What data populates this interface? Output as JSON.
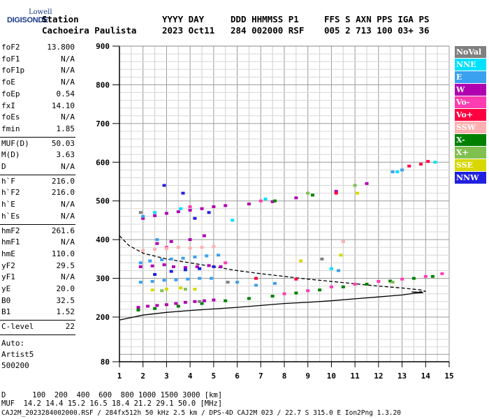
{
  "logo": {
    "line1": "Lowell",
    "line2": "DIGISONDE"
  },
  "header": {
    "row1": [
      "Station",
      "YYYY DAY",
      "DDD HHMMSS P1",
      "FFS S AXN PPS IGA PS"
    ],
    "row2": [
      "Cachoeira Paulista",
      "2023 Oct11",
      "284 002000 RSF",
      "005 2 713 100 03+ 36"
    ]
  },
  "params": {
    "group1": [
      {
        "k": "foF2",
        "v": "13.800"
      },
      {
        "k": "foF1",
        "v": "N/A"
      },
      {
        "k": "foF1p",
        "v": "N/A"
      },
      {
        "k": "foE",
        "v": "N/A"
      },
      {
        "k": "foEp",
        "v": "0.54"
      },
      {
        "k": "fxI",
        "v": "14.10"
      },
      {
        "k": "foEs",
        "v": "N/A"
      },
      {
        "k": "fmin",
        "v": "1.85"
      }
    ],
    "group2": [
      {
        "k": "MUF(D)",
        "v": "50.03"
      },
      {
        "k": "M(D)",
        "v": "3.63"
      },
      {
        "k": "D",
        "v": "N/A"
      }
    ],
    "group3": [
      {
        "k": "h`F",
        "v": "216.0"
      },
      {
        "k": "h`F2",
        "v": "216.0"
      },
      {
        "k": "h`E",
        "v": "N/A"
      },
      {
        "k": "h`Es",
        "v": "N/A"
      }
    ],
    "group4": [
      {
        "k": "hmF2",
        "v": "261.6"
      },
      {
        "k": "hmF1",
        "v": "N/A"
      },
      {
        "k": "hmE",
        "v": "110.0"
      },
      {
        "k": "yF2",
        "v": "29.5"
      },
      {
        "k": "yF1",
        "v": "N/A"
      },
      {
        "k": "yE",
        "v": "20.0"
      },
      {
        "k": "B0",
        "v": "32.5"
      },
      {
        "k": "B1",
        "v": "1.52"
      }
    ],
    "group5": [
      {
        "k": "C-level",
        "v": "22"
      }
    ]
  },
  "auto": {
    "line1": "Auto:",
    "line2": "Artist5",
    "line3": "500200"
  },
  "footer": {
    "d_line": "D      100  200  400  600  800 1000 1500 3000 [km]",
    "muf_line": "MUF  14.2 14.4 15.2 16.5 18.4 21.2 29.1 50.0 [MHz]",
    "file_line": "CAJ2M_2023284002000.RSF / 284fx512h 50 kHz 2.5 km / DPS-4D CAJ2M 023 / 22.7 S 315.0 E Ion2Png 1.3.20"
  },
  "legend": [
    {
      "label": "NoVal",
      "bg": "#808080",
      "fg": "#ffffff"
    },
    {
      "label": "NNE",
      "bg": "#00e0ff",
      "fg": "#ffffff"
    },
    {
      "label": "E",
      "bg": "#3aa0f0",
      "fg": "#ffffff"
    },
    {
      "label": "W",
      "bg": "#b000b0",
      "fg": "#ffffff"
    },
    {
      "label": "Vo-",
      "bg": "#ff3cb0",
      "fg": "#ffffff"
    },
    {
      "label": "Vo+",
      "bg": "#ff0040",
      "fg": "#ffffff"
    },
    {
      "label": "SSW",
      "bg": "#ffb0b0",
      "fg": "#ffffff"
    },
    {
      "label": "X-",
      "bg": "#008000",
      "fg": "#ffffff"
    },
    {
      "label": "X+",
      "bg": "#80c050",
      "fg": "#ffffff"
    },
    {
      "label": "SSE",
      "bg": "#d8d800",
      "fg": "#ffffff"
    },
    {
      "label": "NNW",
      "bg": "#2020e0",
      "fg": "#ffffff"
    }
  ],
  "chart_data": {
    "type": "scatter",
    "xlabel": "",
    "ylabel": "",
    "xlim": [
      1,
      15
    ],
    "ylim": [
      80,
      900
    ],
    "x_ticks": [
      1,
      2,
      3,
      4,
      5,
      6,
      7,
      8,
      9,
      10,
      11,
      12,
      13,
      14,
      15
    ],
    "y_ticks": [
      80,
      200,
      300,
      400,
      500,
      600,
      700,
      800,
      900
    ],
    "grid": true,
    "series": [
      {
        "name": "W",
        "color": "#b000b0",
        "points": [
          [
            1.8,
            225
          ],
          [
            2.2,
            228
          ],
          [
            2.6,
            230
          ],
          [
            3.0,
            232
          ],
          [
            3.4,
            235
          ],
          [
            3.8,
            238
          ],
          [
            4.2,
            240
          ],
          [
            4.6,
            242
          ],
          [
            5.0,
            244
          ],
          [
            1.9,
            330
          ],
          [
            2.4,
            332
          ],
          [
            2.9,
            335
          ],
          [
            3.3,
            330
          ],
          [
            3.8,
            328
          ],
          [
            4.3,
            330
          ],
          [
            4.8,
            333
          ],
          [
            5.3,
            330
          ],
          [
            2.0,
            455
          ],
          [
            2.5,
            462
          ],
          [
            3.0,
            468
          ],
          [
            3.5,
            472
          ],
          [
            4.0,
            476
          ],
          [
            4.5,
            480
          ],
          [
            5.0,
            485
          ],
          [
            5.5,
            488
          ],
          [
            6.5,
            492
          ],
          [
            7.5,
            498
          ],
          [
            8.5,
            508
          ],
          [
            10.2,
            525
          ],
          [
            11.5,
            545
          ],
          [
            2.6,
            390
          ],
          [
            3.2,
            395
          ],
          [
            4.0,
            400
          ],
          [
            4.6,
            410
          ]
        ]
      },
      {
        "name": "E",
        "color": "#3aa0f0",
        "points": [
          [
            1.9,
            340
          ],
          [
            2.3,
            345
          ],
          [
            2.8,
            348
          ],
          [
            3.2,
            350
          ],
          [
            3.7,
            352
          ],
          [
            4.2,
            355
          ],
          [
            4.7,
            358
          ],
          [
            5.2,
            360
          ],
          [
            1.9,
            290
          ],
          [
            2.4,
            292
          ],
          [
            2.9,
            295
          ],
          [
            3.4,
            296
          ],
          [
            3.9,
            298
          ],
          [
            4.4,
            300
          ],
          [
            4.9,
            300
          ],
          [
            6.0,
            290
          ],
          [
            6.8,
            282
          ],
          [
            7.6,
            287
          ],
          [
            2.0,
            460
          ],
          [
            2.6,
            400
          ],
          [
            10.3,
            320
          ],
          [
            12.6,
            575
          ],
          [
            13.0,
            580
          ]
        ]
      },
      {
        "name": "NNE",
        "color": "#00e0ff",
        "points": [
          [
            2.5,
            470
          ],
          [
            3.6,
            480
          ],
          [
            5.8,
            450
          ],
          [
            7.2,
            505
          ],
          [
            10.0,
            325
          ],
          [
            12.8,
            575
          ],
          [
            14.4,
            600
          ]
        ]
      },
      {
        "name": "Vo-",
        "color": "#ff3cb0",
        "points": [
          [
            3.0,
            380
          ],
          [
            4.0,
            485
          ],
          [
            5.5,
            340
          ],
          [
            7.0,
            500
          ],
          [
            8.0,
            260
          ],
          [
            9.0,
            268
          ],
          [
            10.0,
            278
          ],
          [
            11.0,
            285
          ],
          [
            12.0,
            292
          ],
          [
            13.0,
            298
          ],
          [
            14.0,
            305
          ],
          [
            14.7,
            312
          ]
        ]
      },
      {
        "name": "Vo+",
        "color": "#ff0040",
        "points": [
          [
            6.8,
            300
          ],
          [
            8.5,
            298
          ],
          [
            10.2,
            520
          ],
          [
            13.3,
            590
          ],
          [
            13.8,
            595
          ],
          [
            14.1,
            602
          ]
        ]
      },
      {
        "name": "SSW",
        "color": "#ffb0b0",
        "points": [
          [
            2.0,
            372
          ],
          [
            2.5,
            375
          ],
          [
            3.0,
            377
          ],
          [
            3.5,
            380
          ],
          [
            4.0,
            378
          ],
          [
            4.5,
            380
          ],
          [
            5.0,
            382
          ],
          [
            10.5,
            395
          ]
        ]
      },
      {
        "name": "X-",
        "color": "#008000",
        "points": [
          [
            1.8,
            218
          ],
          [
            2.5,
            222
          ],
          [
            3.5,
            228
          ],
          [
            4.5,
            235
          ],
          [
            5.5,
            242
          ],
          [
            6.5,
            248
          ],
          [
            7.5,
            254
          ],
          [
            8.5,
            262
          ],
          [
            9.5,
            270
          ],
          [
            10.5,
            278
          ],
          [
            11.5,
            285
          ],
          [
            12.5,
            293
          ],
          [
            13.5,
            300
          ],
          [
            14.3,
            305
          ],
          [
            7.6,
            500
          ],
          [
            9.2,
            515
          ]
        ]
      },
      {
        "name": "X+",
        "color": "#80c050",
        "points": [
          [
            2.8,
            268
          ],
          [
            3.8,
            272
          ],
          [
            9.0,
            520
          ],
          [
            11.0,
            540
          ],
          [
            12.6,
            290
          ]
        ]
      },
      {
        "name": "SSE",
        "color": "#d8d800",
        "points": [
          [
            2.4,
            270
          ],
          [
            3.0,
            272
          ],
          [
            3.6,
            275
          ],
          [
            4.2,
            272
          ],
          [
            8.7,
            345
          ],
          [
            10.4,
            360
          ],
          [
            11.1,
            520
          ]
        ]
      },
      {
        "name": "NNW",
        "color": "#2020e0",
        "points": [
          [
            2.5,
            310
          ],
          [
            3.2,
            318
          ],
          [
            3.8,
            322
          ],
          [
            4.4,
            325
          ],
          [
            5.0,
            330
          ],
          [
            4.2,
            455
          ],
          [
            4.8,
            470
          ],
          [
            2.9,
            540
          ],
          [
            3.7,
            520
          ]
        ]
      },
      {
        "name": "NoVal",
        "color": "#808080",
        "points": [
          [
            4.4,
            240
          ],
          [
            5.6,
            290
          ],
          [
            9.6,
            350
          ],
          [
            1.9,
            470
          ]
        ]
      }
    ],
    "lines": [
      {
        "name": "",
        "color": "#000000",
        "dash": false,
        "points": [
          [
            1,
            192
          ],
          [
            2,
            205
          ],
          [
            3,
            212
          ],
          [
            4,
            217
          ],
          [
            5,
            221
          ],
          [
            6,
            225
          ],
          [
            7,
            230
          ],
          [
            8,
            235
          ],
          [
            9,
            238
          ],
          [
            10,
            242
          ],
          [
            11,
            247
          ],
          [
            12,
            252
          ],
          [
            13,
            257
          ],
          [
            13.6,
            262
          ],
          [
            13.9,
            263
          ],
          [
            13.4,
            265
          ]
        ]
      },
      {
        "name": "",
        "color": "#000000",
        "dash": true,
        "points": [
          [
            1,
            410
          ],
          [
            1.4,
            385
          ],
          [
            2.0,
            365
          ],
          [
            3.0,
            350
          ],
          [
            4.0,
            340
          ],
          [
            5.0,
            330
          ],
          [
            6.0,
            320
          ],
          [
            7.0,
            312
          ],
          [
            8.0,
            305
          ],
          [
            9.0,
            298
          ],
          [
            10.0,
            292
          ],
          [
            11.0,
            286
          ],
          [
            12.0,
            280
          ],
          [
            13.0,
            275
          ],
          [
            13.8,
            270
          ],
          [
            14.0,
            266
          ],
          [
            13.5,
            264
          ]
        ]
      }
    ]
  }
}
